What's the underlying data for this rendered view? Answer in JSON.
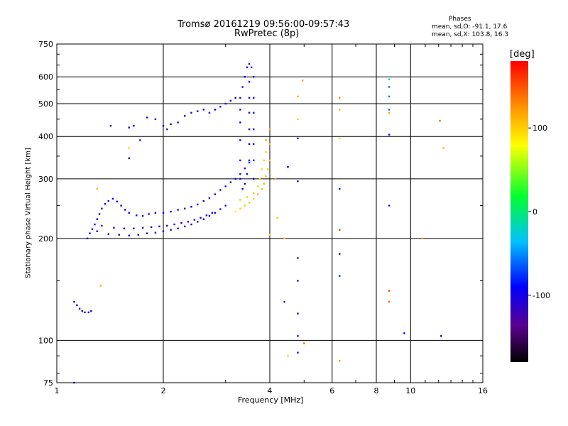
{
  "chart_data": {
    "type": "scatter",
    "title": "Tromsø 20161219 09:56:00-09:57:43",
    "subtitle": "RwPretec (8p)",
    "xlabel": "Frequency [MHz]",
    "ylabel": "Stationary phase Virtual Height [km]",
    "x_scale": "log",
    "y_scale": "log",
    "xlim": [
      1,
      16
    ],
    "ylim": [
      75,
      750
    ],
    "x_ticks": [
      1,
      2,
      4,
      6,
      8,
      10,
      16
    ],
    "y_ticks": [
      75,
      100,
      200,
      300,
      400,
      500,
      600,
      750
    ],
    "grid": true,
    "phases": {
      "title": "Phases",
      "o_stats": "mean, sd,O: -91.1, 17.6",
      "x_stats": "mean, sd,X: 103.8, 16.3"
    },
    "colorbar": {
      "label": "[deg]",
      "ticks": [
        100,
        0,
        -100
      ],
      "range": [
        -180,
        180
      ]
    },
    "series": [
      {
        "points": [
          [
            1.12,
            130,
            -100
          ],
          [
            1.14,
            127,
            -100
          ],
          [
            1.16,
            124,
            -100
          ],
          [
            1.18,
            122,
            -100
          ],
          [
            1.2,
            121,
            -100
          ],
          [
            1.23,
            121,
            -100
          ],
          [
            1.25,
            122,
            -100
          ],
          [
            1.22,
            200,
            -105
          ],
          [
            1.24,
            207,
            -105
          ],
          [
            1.26,
            213,
            -100
          ],
          [
            1.28,
            220,
            -100
          ],
          [
            1.3,
            228,
            -100
          ],
          [
            1.32,
            236,
            -100
          ],
          [
            1.34,
            245,
            -95
          ],
          [
            1.37,
            253,
            -100
          ],
          [
            1.4,
            258,
            -95
          ],
          [
            1.44,
            262,
            -100
          ],
          [
            1.48,
            257,
            -100
          ],
          [
            1.52,
            250,
            -100
          ],
          [
            1.56,
            243,
            -100
          ],
          [
            1.6,
            238,
            -100
          ],
          [
            1.68,
            234,
            -100
          ],
          [
            1.75,
            233,
            -100
          ],
          [
            1.82,
            236,
            -95
          ],
          [
            1.9,
            238,
            -100
          ],
          [
            2.0,
            238,
            -100
          ],
          [
            2.1,
            240,
            -95
          ],
          [
            2.2,
            243,
            -100
          ],
          [
            2.3,
            245,
            -100
          ],
          [
            2.4,
            248,
            -100
          ],
          [
            2.5,
            252,
            -100
          ],
          [
            2.6,
            258,
            -100
          ],
          [
            2.7,
            263,
            -100
          ],
          [
            2.8,
            270,
            -100
          ],
          [
            2.9,
            278,
            -100
          ],
          [
            3.0,
            285,
            -100
          ],
          [
            3.1,
            293,
            -100
          ],
          [
            3.2,
            300,
            -100
          ],
          [
            3.3,
            310,
            -100
          ],
          [
            3.4,
            322,
            -100
          ],
          [
            3.5,
            335,
            -95
          ],
          [
            1.3,
            210,
            -110
          ],
          [
            1.4,
            206,
            -110
          ],
          [
            1.5,
            205,
            -110
          ],
          [
            1.6,
            204,
            -110
          ],
          [
            1.7,
            205,
            -110
          ],
          [
            1.8,
            207,
            -110
          ],
          [
            1.9,
            208,
            -110
          ],
          [
            2.0,
            210,
            -110
          ],
          [
            2.1,
            212,
            -110
          ],
          [
            2.2,
            214,
            -110
          ],
          [
            2.3,
            217,
            -110
          ],
          [
            2.4,
            220,
            -110
          ],
          [
            2.5,
            224,
            -110
          ],
          [
            2.6,
            228,
            -100
          ],
          [
            2.7,
            233,
            -100
          ],
          [
            2.8,
            238,
            -100
          ],
          [
            2.9,
            244,
            -100
          ],
          [
            3.0,
            250,
            -100
          ],
          [
            1.34,
            218,
            -110
          ],
          [
            1.45,
            215,
            -110
          ],
          [
            1.55,
            214,
            -110
          ],
          [
            1.65,
            214,
            -110
          ],
          [
            1.75,
            215,
            -110
          ],
          [
            1.85,
            216,
            -110
          ],
          [
            1.95,
            217,
            -110
          ],
          [
            2.05,
            218,
            -110
          ],
          [
            2.15,
            220,
            -110
          ],
          [
            2.25,
            222,
            -110
          ],
          [
            2.35,
            224,
            -110
          ],
          [
            2.45,
            227,
            -100
          ],
          [
            2.55,
            230,
            -100
          ],
          [
            2.65,
            234,
            -100
          ],
          [
            2.75,
            238,
            -100
          ],
          [
            1.42,
            430,
            -115
          ],
          [
            1.6,
            425,
            -100
          ],
          [
            1.65,
            430,
            -105
          ],
          [
            1.72,
            390,
            -110
          ],
          [
            1.6,
            345,
            -115
          ],
          [
            1.8,
            455,
            -110
          ],
          [
            1.9,
            450,
            -110
          ],
          [
            2.0,
            430,
            -105
          ],
          [
            2.05,
            420,
            -110
          ],
          [
            2.1,
            435,
            -100
          ],
          [
            2.2,
            440,
            -100
          ],
          [
            2.3,
            460,
            -100
          ],
          [
            2.4,
            470,
            -100
          ],
          [
            2.5,
            475,
            -100
          ],
          [
            2.6,
            480,
            -100
          ],
          [
            2.7,
            470,
            -100
          ],
          [
            2.8,
            480,
            -95
          ],
          [
            2.9,
            490,
            -95
          ],
          [
            3.0,
            500,
            -95
          ],
          [
            3.1,
            510,
            -90
          ],
          [
            3.2,
            520,
            -90
          ],
          [
            3.35,
            560,
            -100
          ],
          [
            3.4,
            600,
            -100
          ],
          [
            3.45,
            640,
            -100
          ],
          [
            3.5,
            655,
            -100
          ],
          [
            3.55,
            640,
            -100
          ],
          [
            3.5,
            580,
            -100
          ],
          [
            3.5,
            520,
            -100
          ],
          [
            3.5,
            470,
            -100
          ],
          [
            3.5,
            420,
            -100
          ],
          [
            3.5,
            380,
            -90
          ],
          [
            3.5,
            340,
            -100
          ],
          [
            3.45,
            310,
            -90
          ],
          [
            3.4,
            290,
            -90
          ],
          [
            3.35,
            280,
            -90
          ],
          [
            3.3,
            300,
            -100
          ],
          [
            3.3,
            340,
            -100
          ],
          [
            3.3,
            390,
            -100
          ],
          [
            3.3,
            440,
            -90
          ],
          [
            3.3,
            480,
            -100
          ],
          [
            3.3,
            520,
            -100
          ],
          [
            3.6,
            600,
            -90
          ],
          [
            3.6,
            520,
            -90
          ],
          [
            3.6,
            470,
            -90
          ],
          [
            3.6,
            420,
            -90
          ],
          [
            3.6,
            380,
            -90
          ],
          [
            3.6,
            340,
            -90
          ],
          [
            3.6,
            300,
            -90
          ],
          [
            3.2,
            240,
            90
          ],
          [
            3.3,
            245,
            100
          ],
          [
            3.4,
            250,
            100
          ],
          [
            3.5,
            255,
            100
          ],
          [
            3.6,
            262,
            100
          ],
          [
            3.7,
            270,
            110
          ],
          [
            3.8,
            280,
            110
          ],
          [
            3.85,
            290,
            110
          ],
          [
            3.9,
            305,
            110
          ],
          [
            3.95,
            320,
            105
          ],
          [
            4.0,
            340,
            105
          ],
          [
            4.0,
            380,
            105
          ],
          [
            4.0,
            420,
            110
          ],
          [
            3.9,
            390,
            120
          ],
          [
            3.3,
            260,
            105
          ],
          [
            3.45,
            265,
            100
          ],
          [
            3.6,
            272,
            105
          ],
          [
            3.7,
            285,
            100
          ],
          [
            3.75,
            300,
            100
          ],
          [
            3.8,
            320,
            100
          ],
          [
            3.85,
            340,
            100
          ],
          [
            3.9,
            360,
            100
          ],
          [
            1.12,
            75,
            -100
          ],
          [
            1.3,
            280,
            110
          ],
          [
            1.33,
            145,
            115
          ],
          [
            1.6,
            370,
            95
          ],
          [
            4.0,
            205,
            95
          ],
          [
            4.15,
            300,
            110
          ],
          [
            4.2,
            230,
            105
          ],
          [
            4.4,
            200,
            100
          ],
          [
            4.4,
            130,
            -110
          ],
          [
            4.5,
            90,
            100
          ],
          [
            4.5,
            325,
            -95
          ],
          [
            4.8,
            395,
            -100
          ],
          [
            4.8,
            295,
            -110
          ],
          [
            4.8,
            175,
            -115
          ],
          [
            4.8,
            150,
            -110
          ],
          [
            4.8,
            120,
            -110
          ],
          [
            4.8,
            103,
            -110
          ],
          [
            4.8,
            92,
            -110
          ],
          [
            4.8,
            450,
            100
          ],
          [
            4.8,
            525,
            120
          ],
          [
            4.95,
            585,
            120
          ],
          [
            5.0,
            98,
            140
          ],
          [
            6.3,
            87,
            120
          ],
          [
            6.3,
            180,
            -100
          ],
          [
            6.3,
            212,
            160
          ],
          [
            6.3,
            280,
            -85
          ],
          [
            6.3,
            395,
            95
          ],
          [
            6.3,
            480,
            110
          ],
          [
            6.3,
            520,
            130
          ],
          [
            6.3,
            155,
            -75
          ],
          [
            8.7,
            590,
            -20
          ],
          [
            8.7,
            560,
            -60
          ],
          [
            8.7,
            525,
            -60
          ],
          [
            8.7,
            480,
            -60
          ],
          [
            8.7,
            470,
            120
          ],
          [
            8.7,
            405,
            -110
          ],
          [
            8.7,
            250,
            -120
          ],
          [
            8.7,
            140,
            150
          ],
          [
            8.7,
            130,
            140
          ],
          [
            9.6,
            105,
            -90
          ],
          [
            10.8,
            200,
            120
          ],
          [
            12.1,
            445,
            140
          ],
          [
            12.4,
            370,
            110
          ],
          [
            12.2,
            103,
            -110
          ]
        ]
      }
    ]
  }
}
